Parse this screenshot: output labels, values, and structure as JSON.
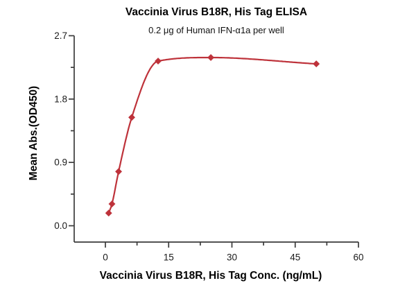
{
  "chart_data": {
    "type": "scatter",
    "title": "Vaccinia Virus B18R, His Tag ELISA",
    "subtitle": "0.2 μg of Human IFN-α1a per well",
    "xlabel": "Vaccinia Virus B18R, His Tag Conc. (ng/mL)",
    "ylabel": "Mean Abs.(OD450)",
    "xlim": [
      0,
      60
    ],
    "ylim": [
      0,
      2.7
    ],
    "x_ticks": {
      "major": [
        0,
        15,
        30,
        45,
        60
      ],
      "labels": [
        "0",
        "15",
        "30",
        "45",
        "60"
      ],
      "minor": [
        7.5,
        22.5,
        37.5,
        52.5
      ]
    },
    "y_ticks": {
      "major": [
        0,
        0.9,
        1.8,
        2.7
      ],
      "labels": [
        "0.0",
        "0.9",
        "1.8",
        "2.7"
      ],
      "minor": [
        0.45,
        1.35,
        2.25
      ]
    },
    "grid": false,
    "legend": "none",
    "axis_color": "#3a3a3a",
    "text_color": "#1a1a1a",
    "series": [
      {
        "name": "Vaccinia Virus B18R, His Tag",
        "x": [
          0.78,
          1.56,
          3.13,
          6.25,
          12.5,
          25,
          50
        ],
        "y": [
          0.18,
          0.31,
          0.77,
          1.54,
          2.34,
          2.39,
          2.3
        ],
        "marker": "diamond",
        "fit_curve": "smooth-sigmoid",
        "color": "#be323a"
      }
    ]
  }
}
